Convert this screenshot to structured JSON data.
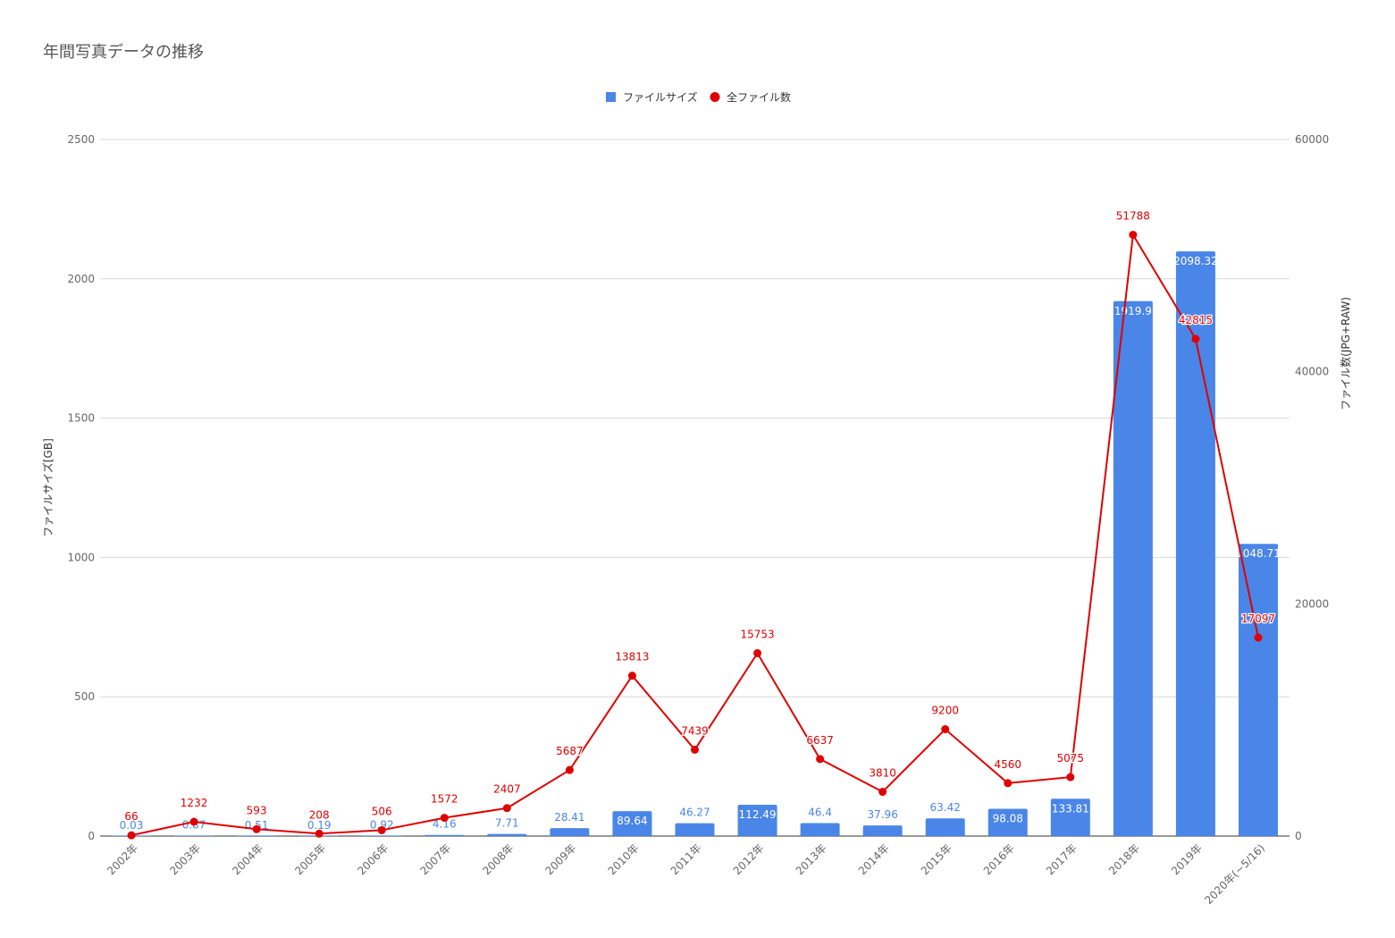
{
  "title": "年間写真データの推移",
  "colors": {
    "bar": "#4a86e8",
    "line": "#e00000",
    "grid": "#d9d9d9",
    "axis": "#333333"
  },
  "chart_data": {
    "type": "bar+line",
    "title": "年間写真データの推移",
    "categories": [
      "2002年",
      "2003年",
      "2004年",
      "2005年",
      "2006年",
      "2007年",
      "2008年",
      "2009年",
      "2010年",
      "2011年",
      "2012年",
      "2013年",
      "2014年",
      "2015年",
      "2016年",
      "2017年",
      "2018年",
      "2019年",
      "2020年(~5/16)"
    ],
    "series": [
      {
        "name": "ファイルサイズ",
        "type": "bar",
        "axis": "left",
        "values": [
          0.03,
          0.87,
          0.51,
          0.19,
          0.92,
          4.16,
          7.71,
          28.41,
          89.64,
          46.27,
          112.49,
          46.4,
          37.96,
          63.42,
          98.08,
          133.81,
          1919.9,
          2098.32,
          1048.71
        ]
      },
      {
        "name": "全ファイル数",
        "type": "line",
        "axis": "right",
        "values": [
          66,
          1232,
          593,
          208,
          506,
          1572,
          2407,
          5687,
          13813,
          7439,
          15753,
          6637,
          3810,
          9200,
          4560,
          5075,
          51788,
          42815,
          17097
        ]
      }
    ],
    "y_left": {
      "label": "ファイルサイズ[GB]",
      "range": [
        0,
        2500
      ],
      "ticks": [
        0,
        500,
        1000,
        1500,
        2000,
        2500
      ]
    },
    "y_right": {
      "label": "ファイル数(JPG+RAW)",
      "range": [
        0,
        60000
      ],
      "ticks": [
        0,
        20000,
        40000,
        60000
      ]
    },
    "legend_position": "top-center",
    "grid": true
  }
}
